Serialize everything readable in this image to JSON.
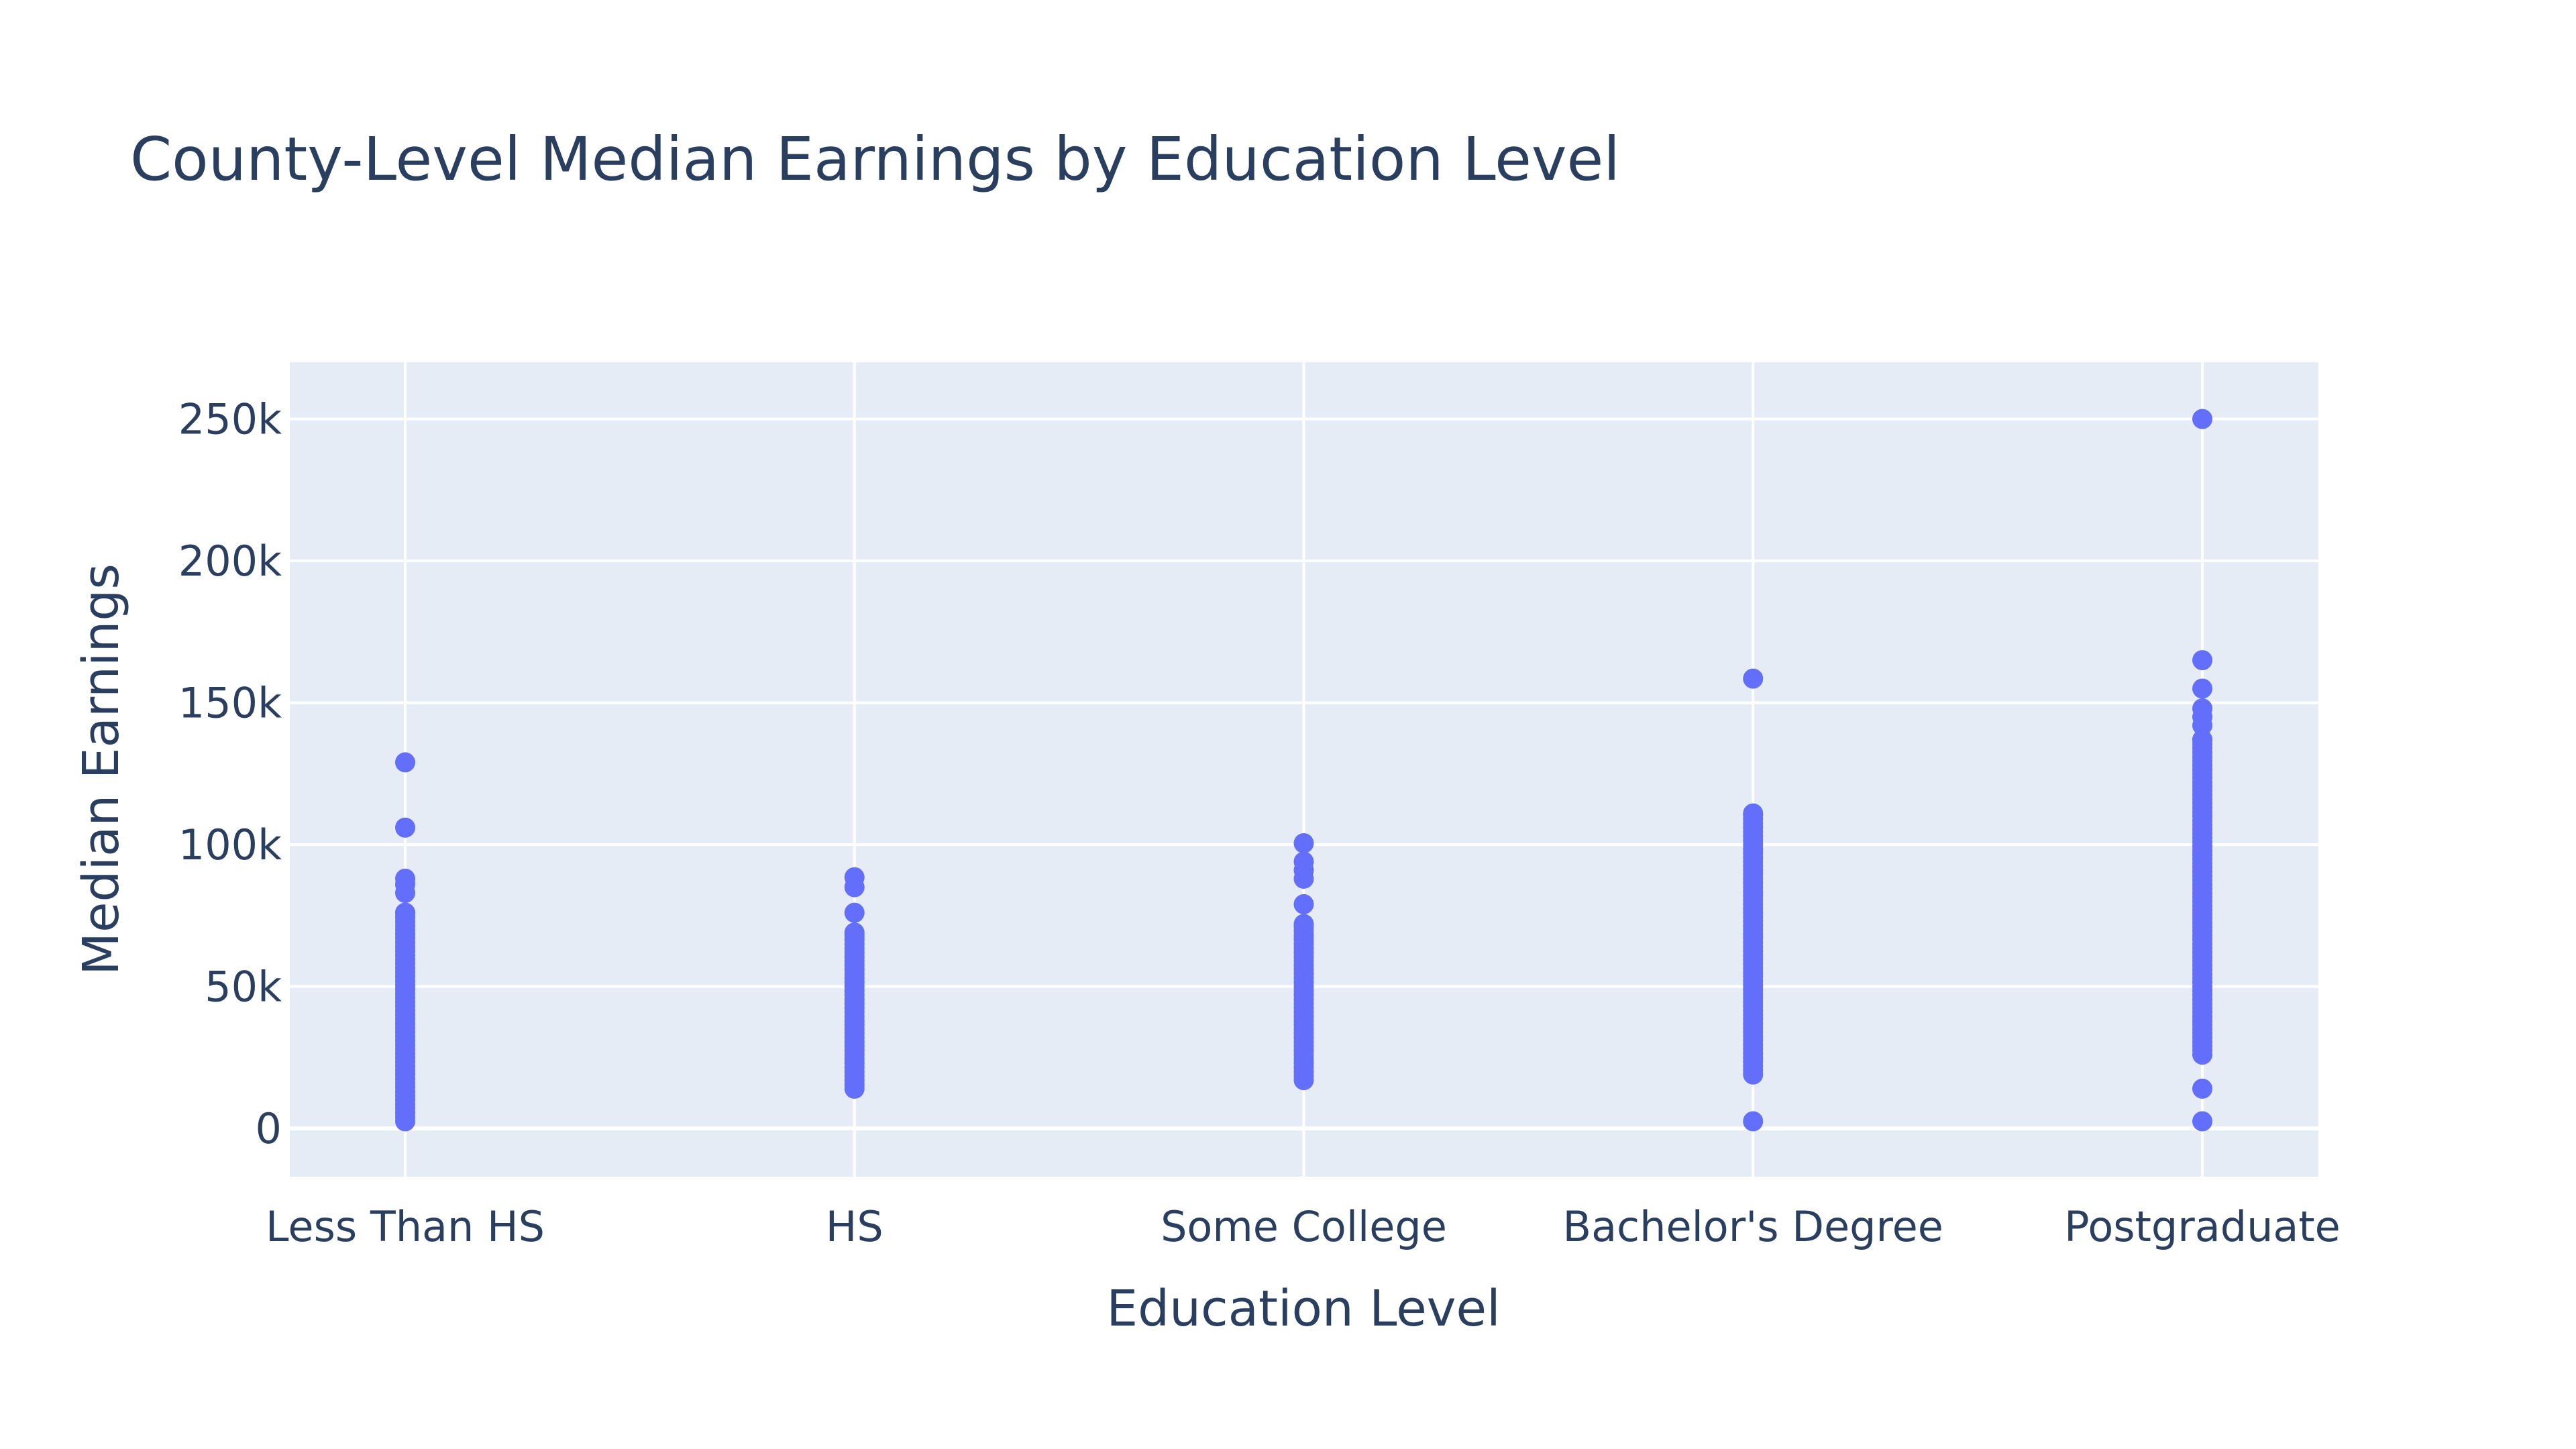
{
  "chart_data": {
    "type": "scatter",
    "title": "County-Level Median Earnings by Education Level",
    "xlabel": "Education Level",
    "ylabel": "Median Earnings",
    "categories": [
      "Less Than HS",
      "HS",
      "Some College",
      "Bachelor's Degree",
      "Postgraduate"
    ],
    "y_ticks": [
      0,
      50000,
      100000,
      150000,
      200000,
      250000
    ],
    "y_tick_labels": [
      "0",
      "50k",
      "100k",
      "150k",
      "200k",
      "250k"
    ],
    "ylim": [
      -17000,
      270000
    ],
    "grid": true,
    "legend": "none",
    "colors": {
      "marker": "#636efa",
      "plot_bg": "#e5ecf6",
      "grid": "#ffffff",
      "text": "#2a3f5f"
    },
    "series": [
      {
        "values": [
          {
            "category": "Less Than HS",
            "y_min": 2500,
            "y_max": 76000,
            "outliers": [
              83000,
              86000,
              88000,
              106000,
              129000
            ]
          },
          {
            "category": "HS",
            "y_min": 14000,
            "y_max": 69000,
            "outliers": [
              76000,
              85000,
              88500
            ]
          },
          {
            "category": "Some College",
            "y_min": 17000,
            "y_max": 72000,
            "outliers": [
              79000,
              88000,
              91000,
              94000,
              100500
            ]
          },
          {
            "category": "Bachelor's Degree",
            "y_min": 19000,
            "y_max": 111000,
            "outliers": [
              2500,
              158500
            ]
          },
          {
            "category": "Postgraduate",
            "y_min": 26000,
            "y_max": 137000,
            "outliers": [
              2500,
              14000,
              142000,
              145000,
              148000,
              155000,
              165000,
              250000
            ]
          }
        ]
      }
    ]
  }
}
